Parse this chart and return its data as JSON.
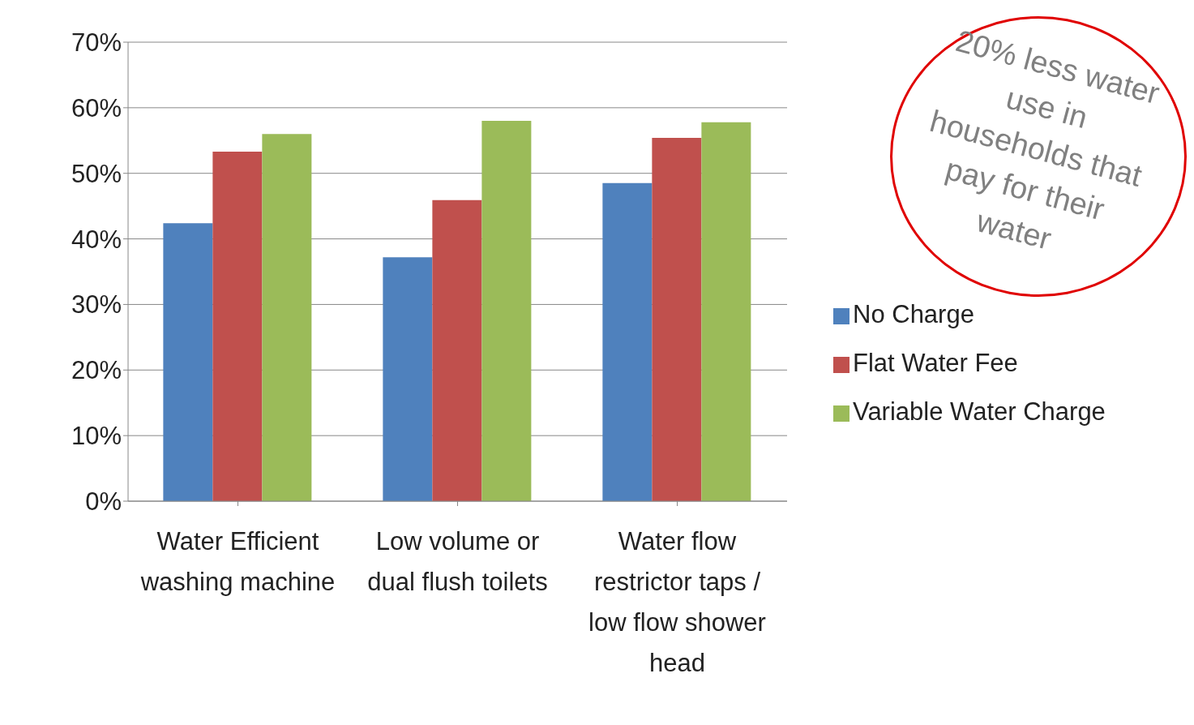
{
  "chart_data": {
    "type": "bar",
    "categories": [
      "Water Efficient washing machine",
      "Low volume or dual flush toilets",
      "Water flow restrictor taps / low flow shower head"
    ],
    "series": [
      {
        "name": "No Charge",
        "color": "#4f81bd",
        "values": [
          42.4,
          37.2,
          48.5
        ]
      },
      {
        "name": "Flat Water Fee",
        "color": "#c0504d",
        "values": [
          53.3,
          45.9,
          55.4
        ]
      },
      {
        "name": "Variable Water Charge",
        "color": "#9bbb59",
        "values": [
          56,
          58,
          57.8
        ]
      }
    ],
    "ylim": [
      0,
      70
    ],
    "yticks": [
      {
        "value": 0,
        "label": "0%"
      },
      {
        "value": 10,
        "label": "10%"
      },
      {
        "value": 20,
        "label": "20%"
      },
      {
        "value": 30,
        "label": "30%"
      },
      {
        "value": 40,
        "label": "40%"
      },
      {
        "value": 50,
        "label": "50%"
      },
      {
        "value": 60,
        "label": "60%"
      },
      {
        "value": 70,
        "label": "70%"
      }
    ],
    "grid": "y",
    "legend": "right",
    "annotations": [
      "20% less water use in households that pay for their water"
    ]
  }
}
